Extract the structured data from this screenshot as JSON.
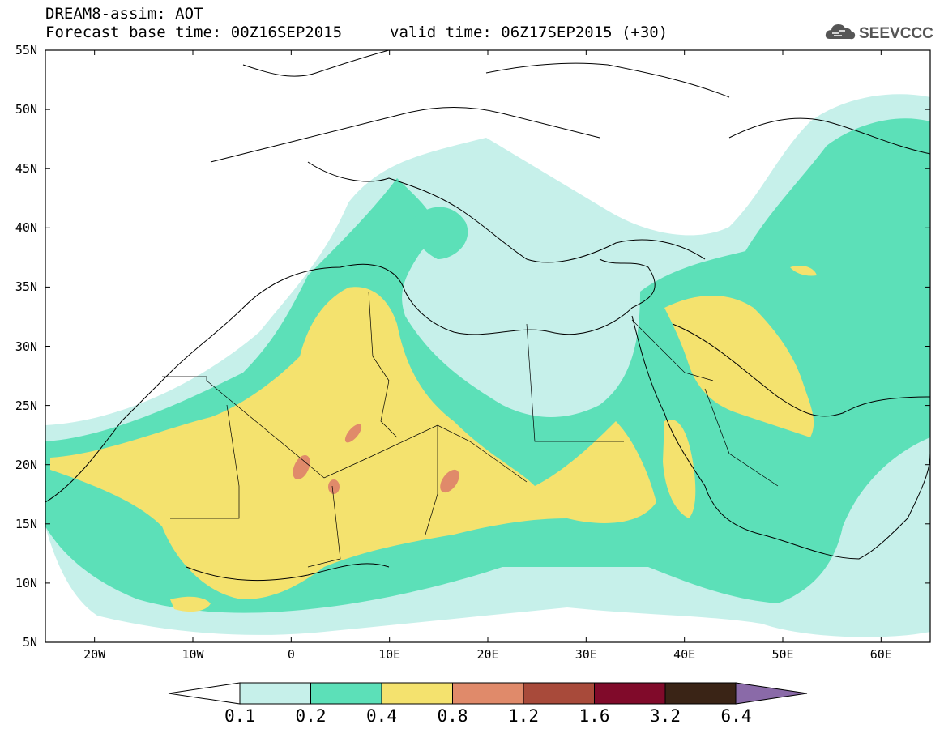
{
  "header": {
    "title": "DREAM8-assim: AOT",
    "base_time": "Forecast base time: 00Z16SEP2015",
    "valid_time": "valid time: 06Z17SEP2015 (+30)"
  },
  "logo": {
    "text": "SEEVCCC",
    "icon": "cloud-icon"
  },
  "map": {
    "variable": "Aerosol Optical Thickness",
    "lon_range": [
      -25,
      65
    ],
    "lat_range": [
      5,
      55
    ],
    "lat_labels": [
      "55N",
      "50N",
      "45N",
      "40N",
      "35N",
      "30N",
      "25N",
      "20N",
      "15N",
      "10N",
      "5N"
    ],
    "lon_labels": [
      "20W",
      "10W",
      "0",
      "10E",
      "20E",
      "30E",
      "40E",
      "50E",
      "60E"
    ]
  },
  "colorbar": {
    "thresholds": [
      "0.1",
      "0.2",
      "0.4",
      "0.8",
      "1.2",
      "1.6",
      "3.2",
      "6.4"
    ],
    "colors": [
      "#c6f0ea",
      "#5ce0b8",
      "#f4e26e",
      "#e08a6a",
      "#a84a3a",
      "#800a2a",
      "#3a2416",
      "#8a6aa8"
    ]
  }
}
